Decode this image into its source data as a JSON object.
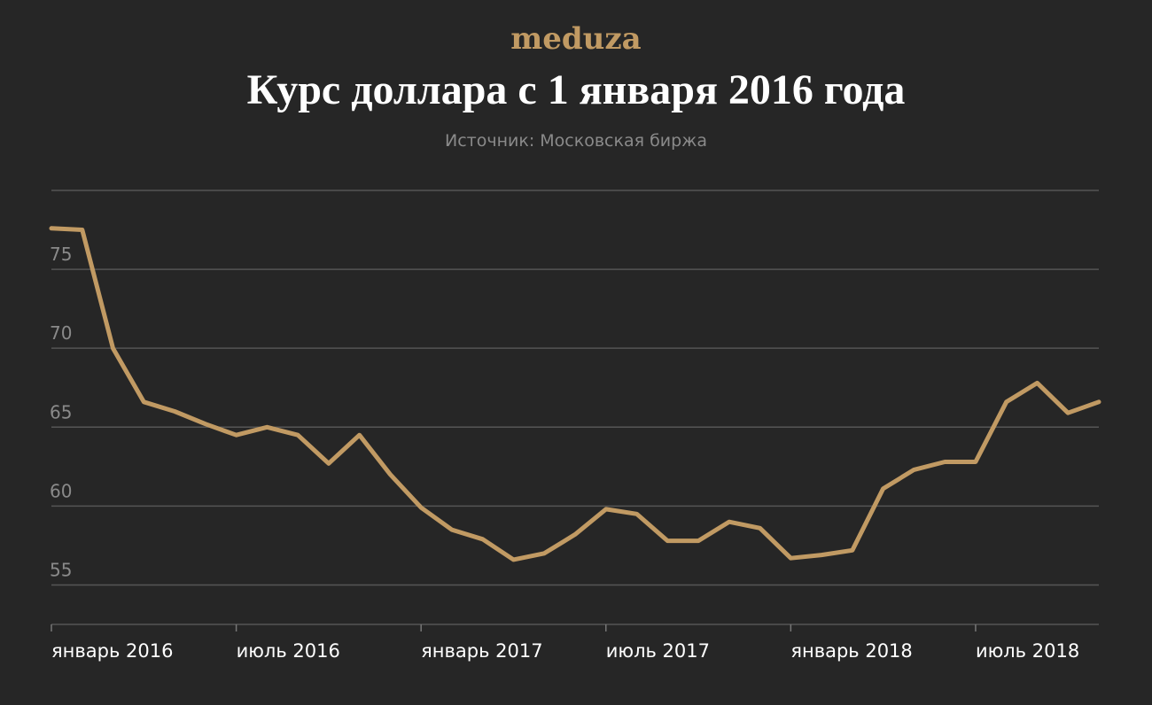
{
  "brand": {
    "logo_text": "meduza",
    "color": "#c19a63"
  },
  "chart_data": {
    "type": "line",
    "title": "Курс доллара с 1 января 2016 года",
    "subtitle": "Источник: Московская биржа",
    "xlabel": "",
    "ylabel": "",
    "ylim": [
      52.5,
      80
    ],
    "yticks": [
      55,
      60,
      65,
      70,
      75
    ],
    "x_tick_labels": [
      "январь 2016",
      "июль 2016",
      "январь 2017",
      "июль 2017",
      "январь 2018",
      "июль 2018"
    ],
    "x_tick_index": [
      0,
      6,
      12,
      18,
      24,
      30
    ],
    "grid": true,
    "line_color": "#c19a63",
    "series": [
      {
        "values": [
          77.6,
          77.5,
          70.0,
          66.6,
          66.0,
          65.2,
          64.5,
          65.0,
          64.5,
          62.7,
          64.5,
          62.0,
          59.9,
          58.5,
          57.9,
          56.6,
          57.0,
          58.2,
          59.8,
          59.5,
          57.8,
          57.8,
          59.0,
          58.6,
          56.7,
          56.9,
          57.2,
          61.1,
          62.3,
          62.8,
          62.8,
          66.6,
          67.8,
          65.9,
          66.6
        ]
      }
    ]
  }
}
